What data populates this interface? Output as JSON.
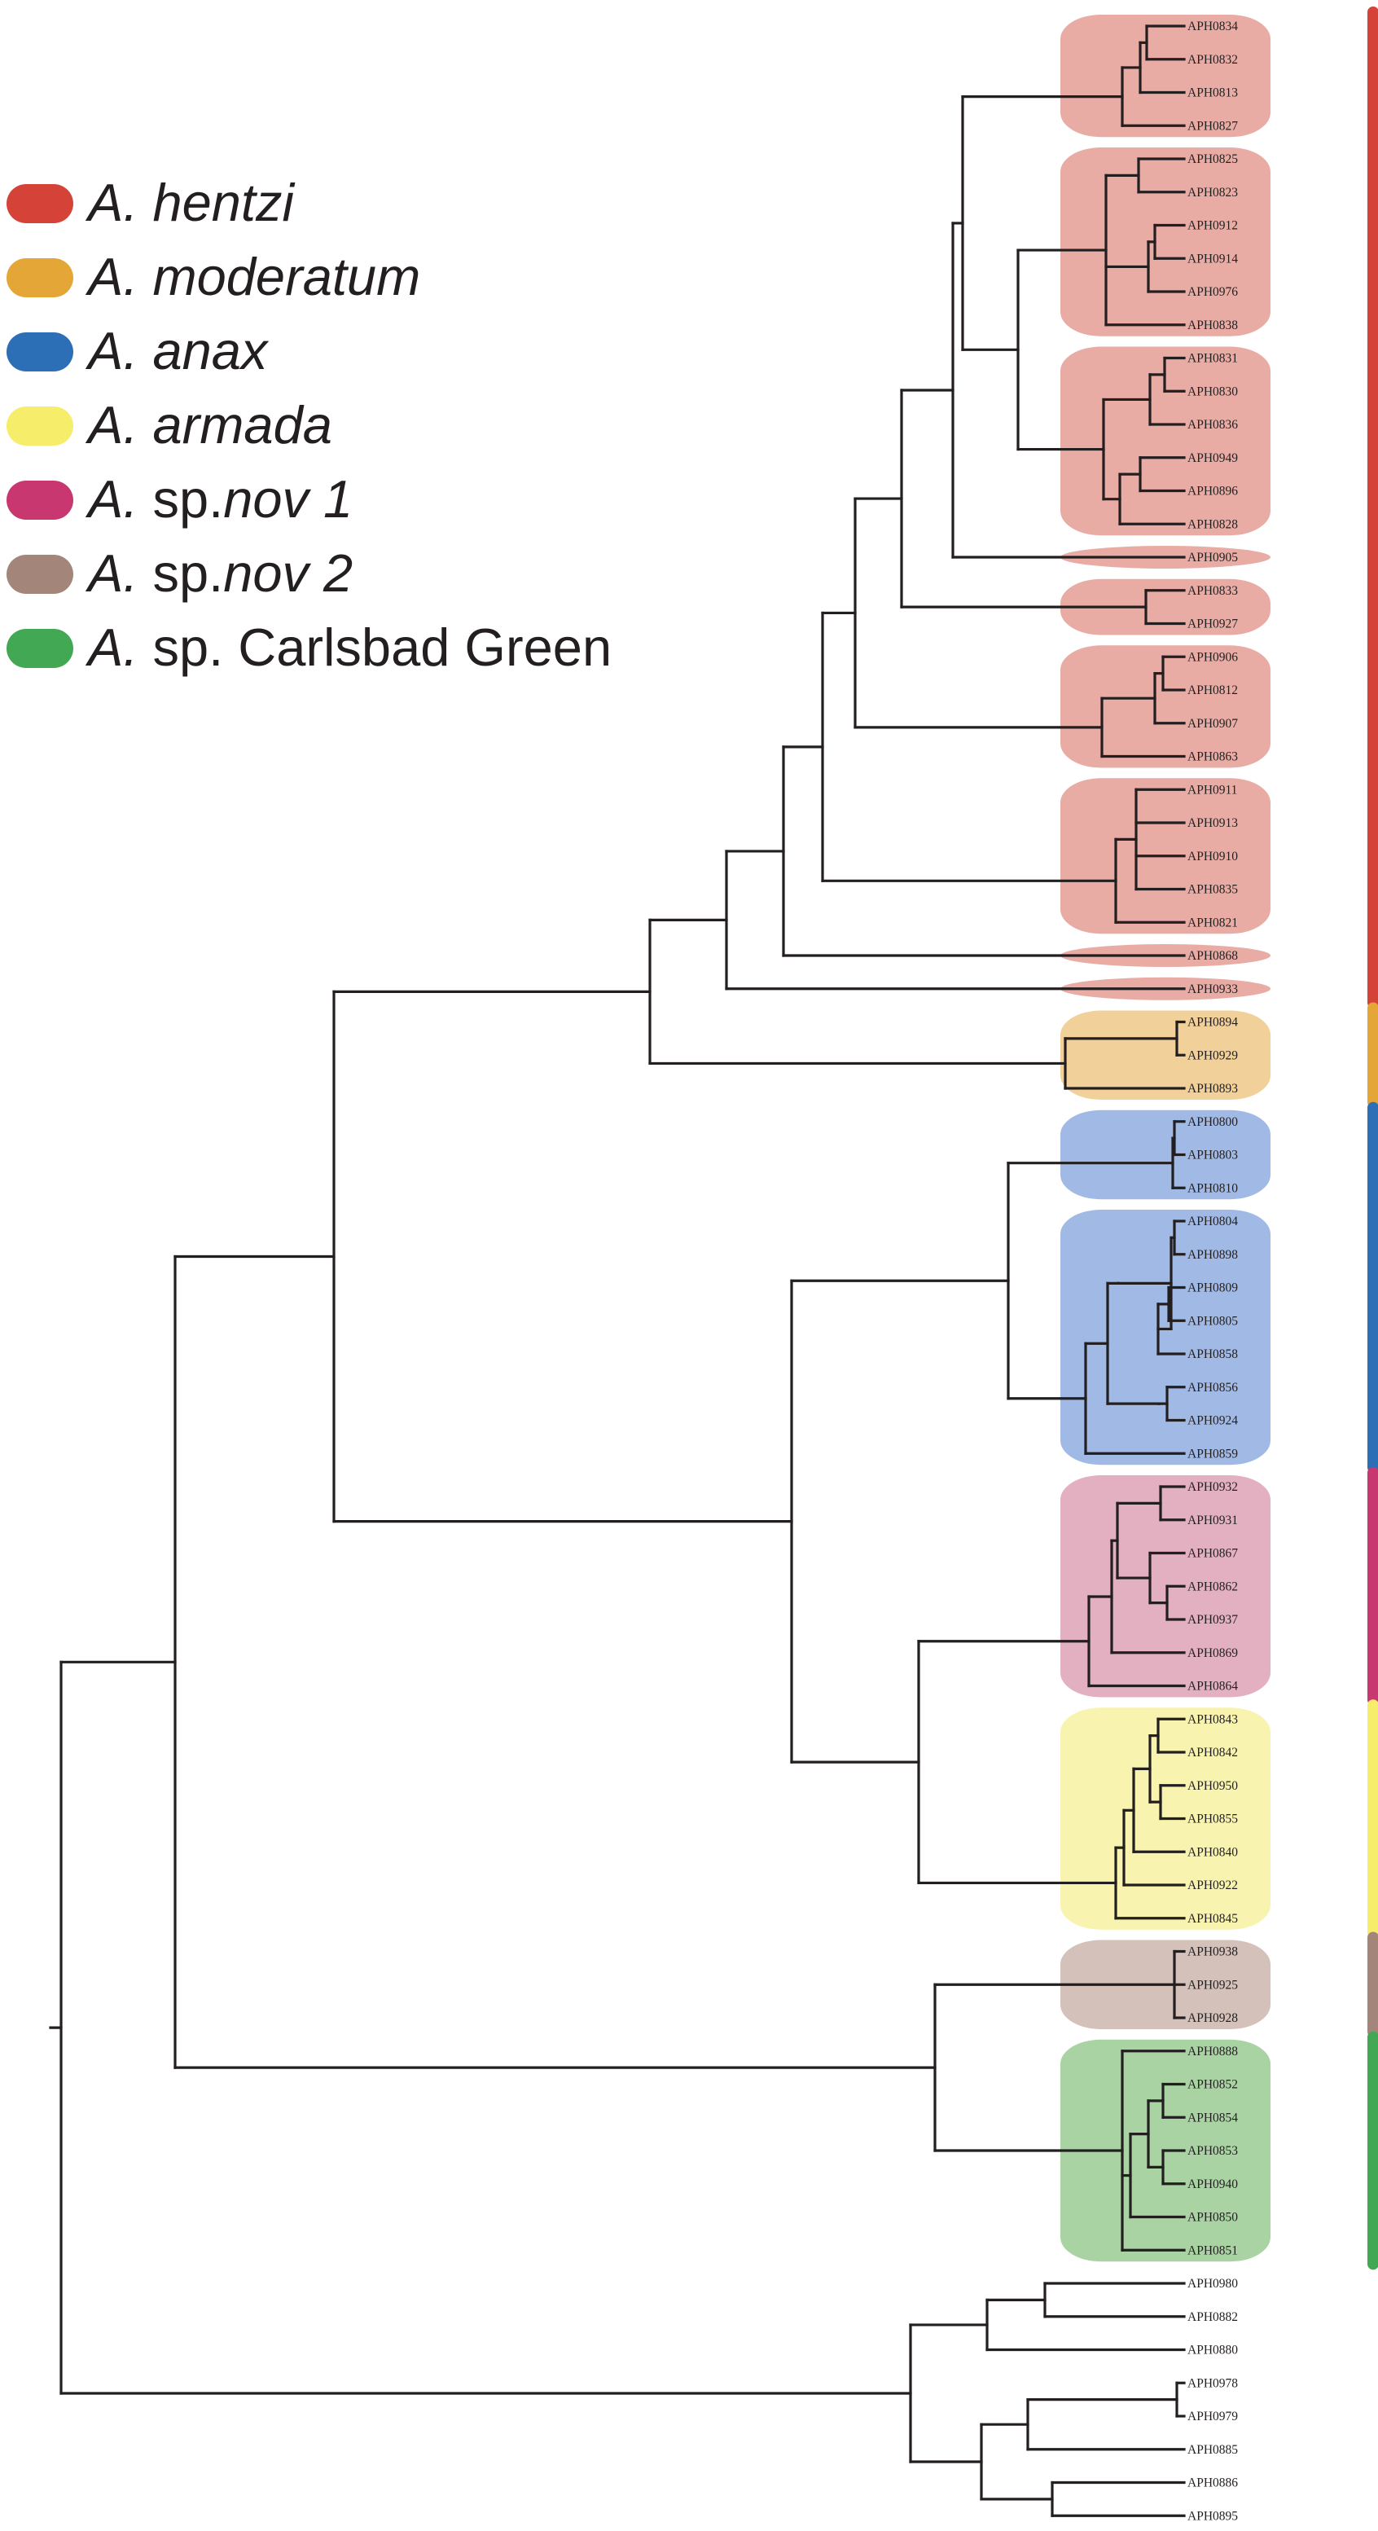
{
  "legend": {
    "items": [
      {
        "genus": "A.",
        "rest_italic": " hentzi",
        "rest_plain": "",
        "rest_italic2": "",
        "color": "#d44238"
      },
      {
        "genus": "A.",
        "rest_italic": " moderatum",
        "rest_plain": "",
        "rest_italic2": "",
        "color": "#e5a638"
      },
      {
        "genus": "A.",
        "rest_italic": " anax",
        "rest_plain": "",
        "rest_italic2": "",
        "color": "#2c6fb7"
      },
      {
        "genus": "A.",
        "rest_italic": " armada",
        "rest_plain": "",
        "rest_italic2": "",
        "color": "#f6ed6a"
      },
      {
        "genus": "A.",
        "rest_italic": "",
        "rest_plain": " sp.",
        "rest_italic2": "nov 1",
        "color": "#c8376f"
      },
      {
        "genus": "A.",
        "rest_italic": "",
        "rest_plain": " sp.",
        "rest_italic2": "nov 2",
        "color": "#a4857a"
      },
      {
        "genus": "A.",
        "rest_italic": "",
        "rest_plain": " sp. Carlsbad Green",
        "rest_italic2": "",
        "color": "#43a853"
      }
    ]
  },
  "clades": [
    {
      "name": "A. hentzi",
      "color": "#d44238",
      "fill": "#e8aca5"
    },
    {
      "name": "A. moderatum",
      "color": "#e5a638",
      "fill": "#f1d09a"
    },
    {
      "name": "A. anax",
      "color": "#2c6fb7",
      "fill": "#a1bae5"
    },
    {
      "name": "A. sp. nov 1",
      "color": "#c8376f",
      "fill": "#e2b0c0"
    },
    {
      "name": "A. armada",
      "color": "#f6ed6a",
      "fill": "#f8f4b0"
    },
    {
      "name": "A. sp. nov 2",
      "color": "#a4857a",
      "fill": "#d3c1ba"
    },
    {
      "name": "A. sp. Carlsbad Green",
      "color": "#43a853",
      "fill": "#aad3a4"
    }
  ],
  "tips": [
    "APH0834",
    "APH0832",
    "APH0813",
    "APH0827",
    "APH0825",
    "APH0823",
    "APH0912",
    "APH0914",
    "APH0976",
    "APH0838",
    "APH0831",
    "APH0830",
    "APH0836",
    "APH0949",
    "APH0896",
    "APH0828",
    "APH0905",
    "APH0833",
    "APH0927",
    "APH0906",
    "APH0812",
    "APH0907",
    "APH0863",
    "APH0911",
    "APH0913",
    "APH0910",
    "APH0835",
    "APH0821",
    "APH0868",
    "APH0933",
    "APH0894",
    "APH0929",
    "APH0893",
    "APH0800",
    "APH0803",
    "APH0810",
    "APH0804",
    "APH0898",
    "APH0809",
    "APH0805",
    "APH0858",
    "APH0856",
    "APH0924",
    "APH0859",
    "APH0932",
    "APH0931",
    "APH0867",
    "APH0862",
    "APH0937",
    "APH0869",
    "APH0864",
    "APH0843",
    "APH0842",
    "APH0950",
    "APH0855",
    "APH0840",
    "APH0922",
    "APH0845",
    "APH0938",
    "APH0925",
    "APH0928",
    "APH0888",
    "APH0852",
    "APH0854",
    "APH0853",
    "APH0940",
    "APH0850",
    "APH0851",
    "APH0980",
    "APH0882",
    "APH0880",
    "APH0978",
    "APH0979",
    "APH0885",
    "APH0886",
    "APH0895"
  ]
}
